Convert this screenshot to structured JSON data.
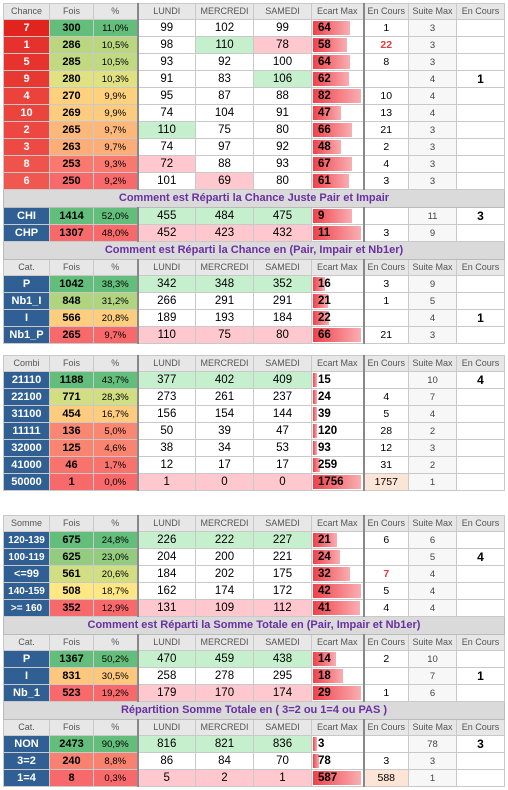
{
  "block1": {
    "hdr": [
      "Chance",
      "Fois",
      "%",
      "LUNDI",
      "MERCREDI",
      "SAMEDI",
      "Ecart Max",
      "En Cours",
      "Suite Max",
      "En Cours"
    ],
    "rows": [
      [
        "7",
        "300",
        "11,0%",
        "99",
        "102",
        "99",
        "64",
        "1",
        "3",
        ""
      ],
      [
        "1",
        "286",
        "10,5%",
        "98",
        "110",
        "78",
        "58",
        "22",
        "3",
        ""
      ],
      [
        "5",
        "285",
        "10,5%",
        "93",
        "92",
        "100",
        "64",
        "8",
        "3",
        ""
      ],
      [
        "9",
        "280",
        "10,3%",
        "91",
        "83",
        "106",
        "62",
        "",
        "4",
        "1"
      ],
      [
        "4",
        "270",
        "9,9%",
        "95",
        "87",
        "88",
        "82",
        "10",
        "4",
        ""
      ],
      [
        "10",
        "269",
        "9,9%",
        "74",
        "104",
        "91",
        "47",
        "13",
        "4",
        ""
      ],
      [
        "2",
        "265",
        "9,7%",
        "110",
        "75",
        "80",
        "66",
        "21",
        "3",
        ""
      ],
      [
        "3",
        "263",
        "9,7%",
        "74",
        "97",
        "92",
        "48",
        "2",
        "3",
        ""
      ],
      [
        "8",
        "253",
        "9,3%",
        "72",
        "88",
        "93",
        "67",
        "4",
        "3",
        ""
      ],
      [
        "6",
        "250",
        "9,2%",
        "101",
        "69",
        "80",
        "61",
        "3",
        "3",
        ""
      ]
    ],
    "title1": "Comment est Réparti la Chance Juste Pair et Impair",
    "rows2": [
      [
        "CHI",
        "1414",
        "52,0%",
        "455",
        "484",
        "475",
        "9",
        "",
        "11",
        "3"
      ],
      [
        "CHP",
        "1307",
        "48,0%",
        "452",
        "423",
        "432",
        "11",
        "3",
        "9",
        ""
      ]
    ],
    "title2": "Comment est Réparti la Chance en (Pair, Impair et Nb1er)",
    "hdr2": [
      "Cat.",
      "Fois",
      "%",
      "LUNDI",
      "MERCREDI",
      "SAMEDI",
      "Ecart Max",
      "En Cours",
      "Suite Max",
      "En Cours"
    ],
    "rows3": [
      [
        "P",
        "1042",
        "38,3%",
        "342",
        "348",
        "352",
        "16",
        "3",
        "9",
        ""
      ],
      [
        "Nb1_I",
        "848",
        "31,2%",
        "266",
        "291",
        "291",
        "21",
        "1",
        "5",
        ""
      ],
      [
        "I",
        "566",
        "20,8%",
        "189",
        "193",
        "184",
        "22",
        "",
        "4",
        "1"
      ],
      [
        "Nb1_P",
        "265",
        "9,7%",
        "110",
        "75",
        "80",
        "66",
        "21",
        "3",
        ""
      ]
    ]
  },
  "block2": {
    "hdr": [
      "Combi",
      "Fois",
      "%",
      "LUNDI",
      "MERCREDI",
      "SAMEDI",
      "Ecart Max",
      "En Cours",
      "Suite Max",
      "En Cours"
    ],
    "rows": [
      [
        "21110",
        "1188",
        "43,7%",
        "377",
        "402",
        "409",
        "15",
        "",
        "10",
        "4"
      ],
      [
        "22100",
        "771",
        "28,3%",
        "273",
        "261",
        "237",
        "24",
        "4",
        "7",
        ""
      ],
      [
        "31100",
        "454",
        "16,7%",
        "156",
        "154",
        "144",
        "39",
        "5",
        "4",
        ""
      ],
      [
        "11111",
        "136",
        "5,0%",
        "50",
        "39",
        "47",
        "120",
        "28",
        "2",
        ""
      ],
      [
        "32000",
        "125",
        "4,6%",
        "38",
        "34",
        "53",
        "93",
        "12",
        "3",
        ""
      ],
      [
        "41000",
        "46",
        "1,7%",
        "12",
        "17",
        "17",
        "259",
        "31",
        "2",
        ""
      ],
      [
        "50000",
        "1",
        "0,0%",
        "1",
        "0",
        "0",
        "1756",
        "1757",
        "1",
        ""
      ]
    ]
  },
  "block3": {
    "hdr": [
      "Somme",
      "Fois",
      "%",
      "LUNDI",
      "MERCREDI",
      "SAMEDI",
      "Ecart Max",
      "En Cours",
      "Suite Max",
      "En Cours"
    ],
    "rows": [
      [
        "120-139",
        "675",
        "24,8%",
        "226",
        "222",
        "227",
        "21",
        "6",
        "6",
        ""
      ],
      [
        "100-119",
        "625",
        "23,0%",
        "204",
        "200",
        "221",
        "24",
        "",
        "5",
        "4"
      ],
      [
        "<=99",
        "561",
        "20,6%",
        "184",
        "202",
        "175",
        "32",
        "7",
        "4",
        ""
      ],
      [
        "140-159",
        "508",
        "18,7%",
        "162",
        "174",
        "172",
        "42",
        "5",
        "4",
        ""
      ],
      [
        ">= 160",
        "352",
        "12,9%",
        "131",
        "109",
        "112",
        "41",
        "4",
        "4",
        ""
      ]
    ],
    "title1": "Comment est Réparti la Somme Totale en (Pair, Impair et Nb1er)",
    "hdr2": [
      "Cat.",
      "Fois",
      "%",
      "LUNDI",
      "MERCREDI",
      "SAMEDI",
      "Ecart Max",
      "En Cours",
      "Suite Max",
      "En Cours"
    ],
    "rows2": [
      [
        "P",
        "1367",
        "50,2%",
        "470",
        "459",
        "438",
        "14",
        "2",
        "10",
        ""
      ],
      [
        "I",
        "831",
        "30,5%",
        "258",
        "278",
        "295",
        "18",
        "",
        "7",
        "1"
      ],
      [
        "Nb_1",
        "523",
        "19,2%",
        "179",
        "170",
        "174",
        "29",
        "1",
        "6",
        ""
      ]
    ],
    "title2": "Répartition Somme Totale en ( 3=2 ou 1=4 ou PAS )",
    "hdr3": [
      "Cat.",
      "Fois",
      "%",
      "LUNDI",
      "MERCREDI",
      "SAMEDI",
      "Ecart Max",
      "En Cours",
      "Suite Max",
      "En Cours"
    ],
    "rows3": [
      [
        "NON",
        "2473",
        "90,9%",
        "816",
        "821",
        "836",
        "3",
        "",
        "78",
        "3"
      ],
      [
        "3=2",
        "240",
        "8,8%",
        "86",
        "84",
        "70",
        "78",
        "3",
        "3",
        ""
      ],
      [
        "1=4",
        "8",
        "0,3%",
        "5",
        "2",
        "1",
        "587",
        "588",
        "1",
        ""
      ]
    ]
  },
  "colors": {
    "red": "#e23b3b",
    "orange": "#f08a4b",
    "yellow": "#ffe68a",
    "green": "#63be7b",
    "lightgreen": "#c6efce",
    "lightred": "#ffc7ce",
    "title": "#6a2fa0"
  }
}
